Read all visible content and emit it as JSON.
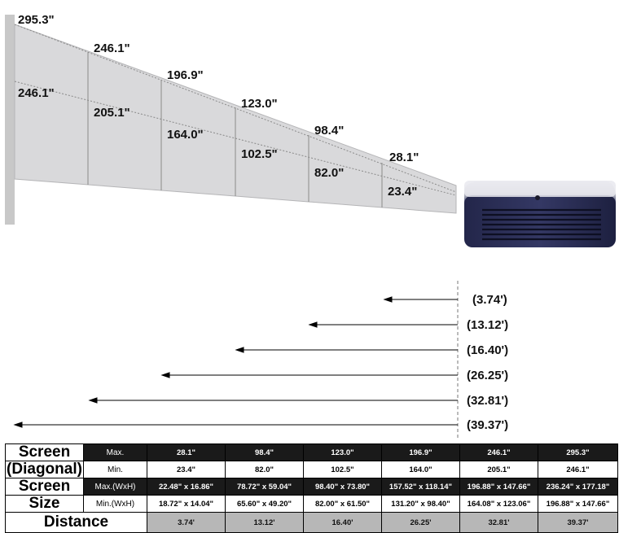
{
  "diagram": {
    "top_labels": [
      "295.3\"",
      "246.1\"",
      "196.9\"",
      "123.0\"",
      "98.4\"",
      "28.1\""
    ],
    "bottom_labels": [
      "246.1\"",
      "205.1\"",
      "164.0\"",
      "102.5\"",
      "82.0\"",
      "23.4\""
    ],
    "distances": [
      "(3.74')",
      "(13.12')",
      "(16.40')",
      "(26.25')",
      "(32.81')",
      "(39.37')"
    ]
  },
  "table": {
    "row_headers": {
      "screen_diag_1": "Screen",
      "screen_diag_2": "(Diagonal)",
      "screen_size_1": "Screen",
      "screen_size_2": "Size",
      "distance": "Distance"
    },
    "sub_labels": {
      "max": "Max.",
      "min": "Min.",
      "max_wxh": "Max.(WxH)",
      "min_wxh": "Min.(WxH)"
    },
    "diag_max": [
      "28.1\"",
      "98.4\"",
      "123.0\"",
      "196.9\"",
      "246.1\"",
      "295.3\""
    ],
    "diag_min": [
      "23.4\"",
      "82.0\"",
      "102.5\"",
      "164.0\"",
      "205.1\"",
      "246.1\""
    ],
    "size_max": [
      "22.48\" x 16.86\"",
      "78.72\" x 59.04\"",
      "98.40\" x 73.80\"",
      "157.52\" x 118.14\"",
      "196.88\" x 147.66\"",
      "236.24\" x 177.18\""
    ],
    "size_min": [
      "18.72\" x 14.04\"",
      "65.60\" x 49.20\"",
      "82.00\" x 61.50\"",
      "131.20\" x 98.40\"",
      "164.08\" x 123.06\"",
      "196.88\" x 147.66\""
    ],
    "distance": [
      "3.74'",
      "13.12'",
      "16.40'",
      "26.25'",
      "32.81'",
      "39.37'"
    ]
  }
}
